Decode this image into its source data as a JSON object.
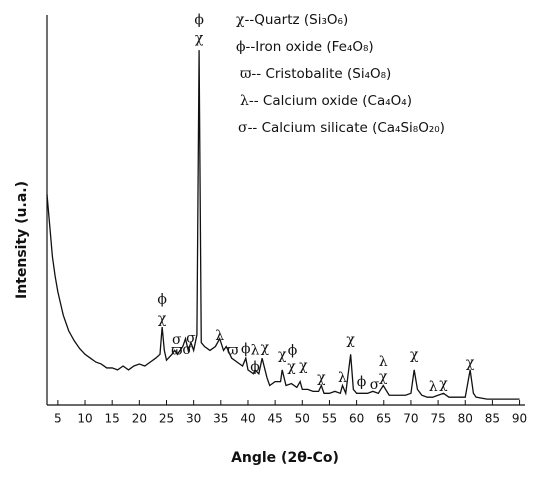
{
  "chart_data": {
    "type": "line",
    "xlabel": "Angle (2θ-Co)",
    "ylabel": "Intensity (u.a.)",
    "xlim": [
      3,
      91
    ],
    "ylim": [
      0,
      100
    ],
    "xticks": [
      5,
      10,
      15,
      20,
      25,
      30,
      35,
      40,
      45,
      50,
      55,
      60,
      65,
      70,
      75,
      80,
      85,
      90
    ],
    "color": "#111111",
    "legend": [
      {
        "symbol": "χ",
        "text": "--Quartz (Si₃O₆)"
      },
      {
        "symbol": "ϕ",
        "text": "--Iron oxide (Fe₄O₈)"
      },
      {
        "symbol": "ϖ",
        "text": "-- Cristobalite (Si₄O₈)"
      },
      {
        "symbol": "λ",
        "text": "-- Calcium oxide (Ca₄O₄)"
      },
      {
        "symbol": "σ",
        "text": "-- Calcium silicate (Ca₄Si₈O₂₀)"
      }
    ],
    "annotations": [
      {
        "text": "ϕ",
        "x": 24.2,
        "y": 27
      },
      {
        "text": "χ",
        "x": 24.2,
        "y": 22
      },
      {
        "text": "ϕ",
        "x": 31,
        "y": 98.7
      },
      {
        "text": "χ",
        "x": 31,
        "y": 94
      },
      {
        "text": "σ",
        "x": 26.9,
        "y": 16.7
      },
      {
        "text": "ϖ",
        "x": 26.9,
        "y": 14
      },
      {
        "text": "σ",
        "x": 28.8,
        "y": 14.1
      },
      {
        "text": "σ",
        "x": 29.5,
        "y": 17
      },
      {
        "text": "λ",
        "x": 34.8,
        "y": 17.7
      },
      {
        "text": "ϖ",
        "x": 37.2,
        "y": 14
      },
      {
        "text": "ϕ",
        "x": 39.6,
        "y": 14.4
      },
      {
        "text": "λ",
        "x": 41.3,
        "y": 14
      },
      {
        "text": "χ",
        "x": 43.1,
        "y": 14.6
      },
      {
        "text": "ϕ",
        "x": 41.3,
        "y": 9.7
      },
      {
        "text": "χ",
        "x": 46.3,
        "y": 12.8
      },
      {
        "text": "ϕ",
        "x": 48.2,
        "y": 14
      },
      {
        "text": "χ",
        "x": 48.0,
        "y": 9.7
      },
      {
        "text": "χ",
        "x": 50.2,
        "y": 10
      },
      {
        "text": "χ",
        "x": 53.5,
        "y": 6.9
      },
      {
        "text": "λ",
        "x": 57.4,
        "y": 6.9
      },
      {
        "text": "χ",
        "x": 58.9,
        "y": 16.7
      },
      {
        "text": "ϕ",
        "x": 60.9,
        "y": 5.9
      },
      {
        "text": "σ",
        "x": 63.3,
        "y": 5.1
      },
      {
        "text": "λ",
        "x": 64.9,
        "y": 11
      },
      {
        "text": "χ",
        "x": 64.9,
        "y": 7.2
      },
      {
        "text": "χ",
        "x": 70.6,
        "y": 12.8
      },
      {
        "text": "λ",
        "x": 74.1,
        "y": 4.6
      },
      {
        "text": "χ",
        "x": 76,
        "y": 5.4
      },
      {
        "text": "χ",
        "x": 80.9,
        "y": 10.8
      }
    ],
    "x": [
      3,
      3.5,
      4,
      4.5,
      5,
      5.5,
      6,
      7,
      8,
      9,
      10,
      11,
      12,
      13,
      14,
      15,
      16,
      17,
      18,
      19,
      20,
      21,
      22,
      23,
      23.8,
      24.2,
      24.6,
      25,
      26,
      26.5,
      27,
      28,
      28.5,
      29,
      29.5,
      30,
      30.6,
      31,
      31.4,
      32,
      33,
      34,
      34.8,
      35.5,
      36,
      37,
      38,
      39,
      39.6,
      40,
      41,
      41.3,
      42,
      42.6,
      43.5,
      44,
      45,
      46,
      46.3,
      47,
      48,
      49,
      49.6,
      50,
      51,
      52,
      53,
      53.5,
      54,
      55,
      56,
      57,
      57.4,
      58,
      58.9,
      59.4,
      60,
      61,
      62,
      63,
      64,
      64.9,
      66,
      67,
      68,
      69,
      70,
      70.6,
      71.2,
      72,
      73,
      74,
      75,
      76,
      77,
      78,
      79,
      80,
      80.9,
      81.5,
      82,
      84,
      86,
      88,
      90
    ],
    "values": [
      54,
      46,
      38,
      33,
      29,
      26,
      23,
      19,
      16.5,
      14.5,
      13,
      12,
      11,
      10.5,
      9.5,
      9.5,
      9,
      10,
      9,
      10,
      10.5,
      10,
      11,
      12,
      13,
      20,
      14,
      11.5,
      13,
      14,
      13,
      15,
      17,
      14,
      16,
      14,
      18,
      91,
      16,
      15,
      14,
      15,
      17,
      14,
      15,
      12,
      11,
      10,
      12,
      9,
      8,
      9,
      8,
      12,
      7,
      5,
      6,
      6,
      9,
      5,
      5.5,
      4.5,
      6,
      4,
      4,
      3.5,
      3.5,
      5,
      3,
      3,
      3.5,
      3,
      5,
      3,
      13,
      4,
      3,
      3,
      3,
      3.5,
      3,
      5,
      2.5,
      2.5,
      2.5,
      2.5,
      3,
      9,
      4,
      2.5,
      2,
      2,
      2.5,
      3,
      2,
      2,
      2,
      2,
      9,
      3,
      2,
      1.5,
      1.5,
      1.5,
      1.5
    ]
  }
}
